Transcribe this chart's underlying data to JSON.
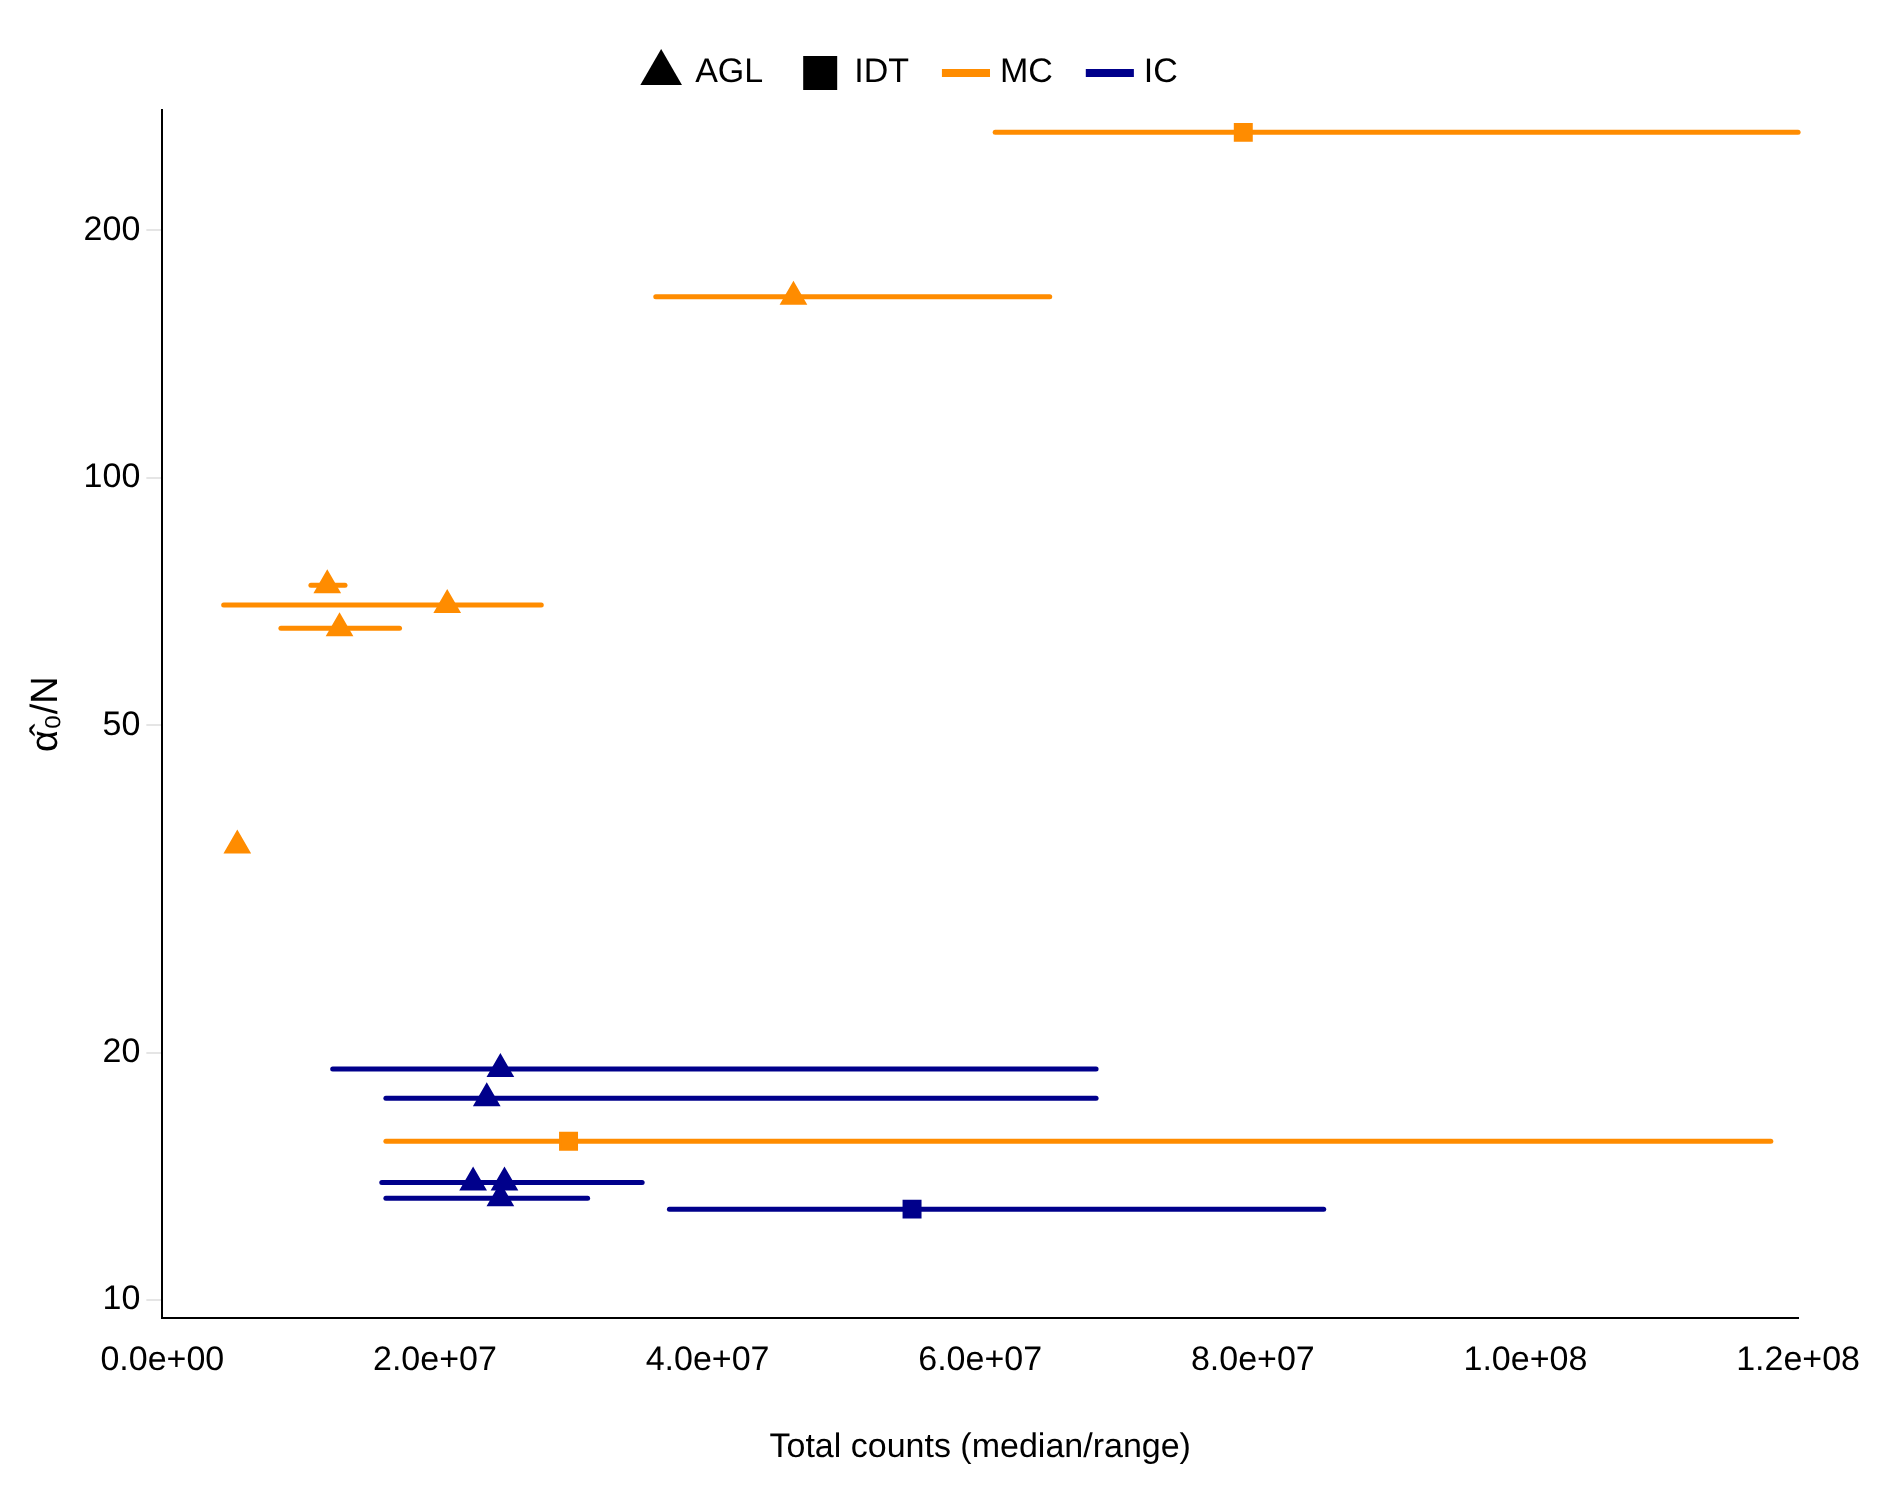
{
  "chart_data": {
    "type": "scatter",
    "xlabel": "Total counts (median/range)",
    "ylabel": "α̂₀/N",
    "log": "y",
    "grid": false,
    "legend": "top",
    "xlim": [
      0,
      120000000
    ],
    "xticks": [
      {
        "value": 0,
        "label": "0.0e+00"
      },
      {
        "value": 20000000,
        "label": "2.0e+07"
      },
      {
        "value": 40000000,
        "label": "4.0e+07"
      },
      {
        "value": 60000000,
        "label": "6.0e+07"
      },
      {
        "value": 80000000,
        "label": "8.0e+07"
      },
      {
        "value": 100000000,
        "label": "1.0e+08"
      },
      {
        "value": 120000000,
        "label": "1.2e+08"
      }
    ],
    "ylim": [
      9.5,
      280
    ],
    "yticks": [
      10,
      20,
      50,
      100,
      200
    ],
    "series": [
      {
        "color": "#ff8c00",
        "marker": "triangle",
        "x": [
          46300000,
          12100000,
          20900000,
          13000000,
          5500000
        ],
        "values": [
          166,
          74,
          70,
          65.6,
          35.7
        ],
        "xerrors": [
          [
            36200000,
            65100000
          ],
          [
            10900000,
            13400000
          ],
          [
            4500000,
            27800000
          ],
          [
            8700000,
            17400000
          ],
          null
        ]
      },
      {
        "color": "#ff8c00",
        "marker": "square",
        "x": [
          79300000,
          29800000
        ],
        "values": [
          263,
          15.6
        ],
        "xerrors": [
          [
            61100000,
            120000000
          ],
          [
            16400000,
            118000000
          ]
        ]
      },
      {
        "color": "#00008b",
        "marker": "triangle",
        "x": [
          24800000,
          23800000,
          22800000,
          25100000,
          24800000
        ],
        "values": [
          19.1,
          17.6,
          13.9,
          13.9,
          13.3
        ],
        "xerrors": [
          [
            12500000,
            68500000
          ],
          [
            16400000,
            68500000
          ],
          [
            16100000,
            35200000
          ],
          null,
          [
            16400000,
            31200000
          ]
        ]
      },
      {
        "color": "#00008b",
        "marker": "square",
        "x": [
          55000000
        ],
        "values": [
          12.9
        ],
        "xerrors": [
          [
            37200000,
            85200000
          ]
        ]
      },
      {
        "name": "AGL",
        "color": "#000000",
        "marker": "triangle"
      },
      {
        "name": "IDT",
        "color": "#000000",
        "marker": "square"
      },
      {
        "name": "MC",
        "color": "#ff8c00",
        "marker": "none"
      },
      {
        "name": "IC",
        "color": "#00008b",
        "marker": "none"
      }
    ]
  }
}
